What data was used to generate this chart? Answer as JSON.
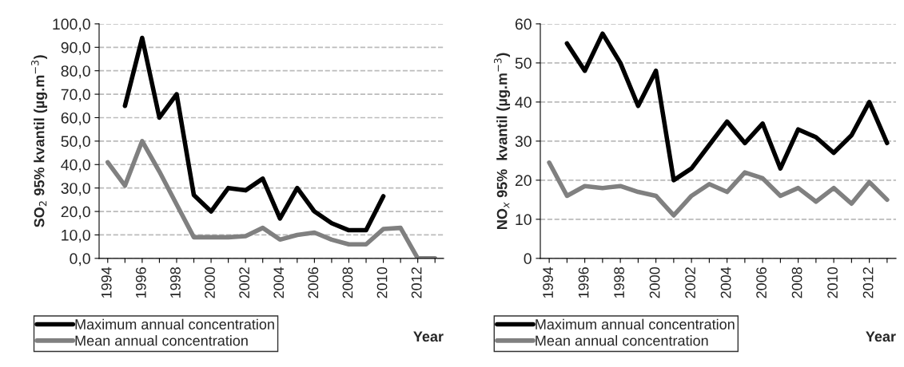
{
  "chart_data": [
    {
      "type": "line",
      "xlabel": "Year",
      "ylabel": "SO$_{2}$ 95% kvantil (µg.m$^{−3}$)",
      "categories": [
        "1994",
        null,
        "1996",
        null,
        "1998",
        null,
        "2000",
        null,
        "2002",
        null,
        "2004",
        null,
        "2006",
        null,
        "2008",
        null,
        "2010",
        null,
        "2012",
        null
      ],
      "series": [
        {
          "name": "Maximum annual concentration",
          "color": "#000000",
          "values": [
            null,
            65,
            94,
            60,
            70,
            27,
            20,
            30,
            29,
            34,
            17,
            30,
            20,
            15,
            12,
            12,
            26.5,
            null,
            null,
            null
          ]
        },
        {
          "name": "Mean annual concentration",
          "color": "#808080",
          "values": [
            41,
            31,
            50,
            37,
            23,
            9,
            9,
            9,
            9.5,
            13,
            8,
            10,
            11,
            8,
            6,
            6,
            12.5,
            13,
            0,
            0
          ]
        }
      ],
      "ylim": [
        0,
        100
      ],
      "yticks": [
        {
          "value": 0,
          "label": "0,0"
        },
        {
          "value": 10,
          "label": "10,0"
        },
        {
          "value": 20,
          "label": "20,0"
        },
        {
          "value": 30,
          "label": "30,0"
        },
        {
          "value": 40,
          "label": "40,0"
        },
        {
          "value": 50,
          "label": "50,0"
        },
        {
          "value": 60,
          "label": "60,0"
        },
        {
          "value": 70,
          "label": "70,0"
        },
        {
          "value": 80,
          "label": "80,0"
        },
        {
          "value": 90,
          "label": "90,0"
        },
        {
          "value": 100,
          "label": "100,0"
        }
      ],
      "grid": "y",
      "legend": "bottom",
      "line_style": "solid",
      "marker": "none"
    },
    {
      "type": "line",
      "xlabel": "Year",
      "ylabel": "NO$_{x}$ 95%  kvantil (µg.m$^{−3}$)",
      "categories": [
        "1994",
        null,
        "1996",
        null,
        "1998",
        null,
        "2000",
        null,
        "2002",
        null,
        "2004",
        null,
        "2006",
        null,
        "2008",
        null,
        "2010",
        null,
        "2012",
        null
      ],
      "series": [
        {
          "name": "Maximum annual concentration",
          "color": "#000000",
          "values": [
            null,
            55,
            48,
            57.5,
            50,
            39,
            48,
            20,
            23,
            29,
            35,
            29.5,
            34.5,
            23,
            33,
            31,
            27,
            31.5,
            40,
            29.5
          ]
        },
        {
          "name": "Mean annual concentration",
          "color": "#808080",
          "values": [
            24.5,
            16,
            18.5,
            18,
            18.5,
            17,
            16,
            11,
            16,
            19,
            17,
            22,
            20.5,
            16,
            18,
            14.5,
            18,
            14,
            19.5,
            15
          ]
        }
      ],
      "ylim": [
        0,
        60
      ],
      "yticks": [
        0,
        10,
        20,
        30,
        40,
        50,
        60
      ],
      "grid": "y",
      "legend": "bottom",
      "line_style": "solid",
      "marker": "none"
    }
  ]
}
